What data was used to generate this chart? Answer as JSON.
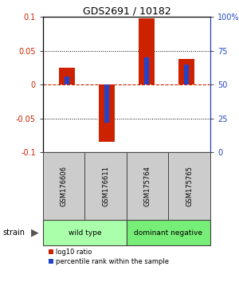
{
  "title": "GDS2691 / 10182",
  "samples": [
    "GSM176606",
    "GSM176611",
    "GSM175764",
    "GSM175765"
  ],
  "log10_ratio": [
    0.025,
    -0.085,
    0.098,
    0.038
  ],
  "percentile_rank": [
    0.56,
    0.22,
    0.7,
    0.65
  ],
  "ylim": [
    -0.1,
    0.1
  ],
  "yticks": [
    -0.1,
    -0.05,
    0,
    0.05,
    0.1
  ],
  "ytick_labels_left": [
    "-0.1",
    "-0.05",
    "0",
    "0.05",
    "0.1"
  ],
  "ytick_labels_right": [
    "0",
    "25",
    "50",
    "75",
    "100%"
  ],
  "bar_color_red": "#cc2200",
  "bar_color_blue": "#2244cc",
  "groups": [
    {
      "label": "wild type",
      "samples": [
        0,
        1
      ],
      "color": "#aaffaa"
    },
    {
      "label": "dominant negative",
      "samples": [
        2,
        3
      ],
      "color": "#77ee77"
    }
  ],
  "strain_label": "strain",
  "legend_red": "log10 ratio",
  "legend_blue": "percentile rank within the sample",
  "bar_width": 0.4,
  "blue_bar_width": 0.12,
  "sample_box_color": "#cccccc",
  "box_edge_color": "#444444"
}
